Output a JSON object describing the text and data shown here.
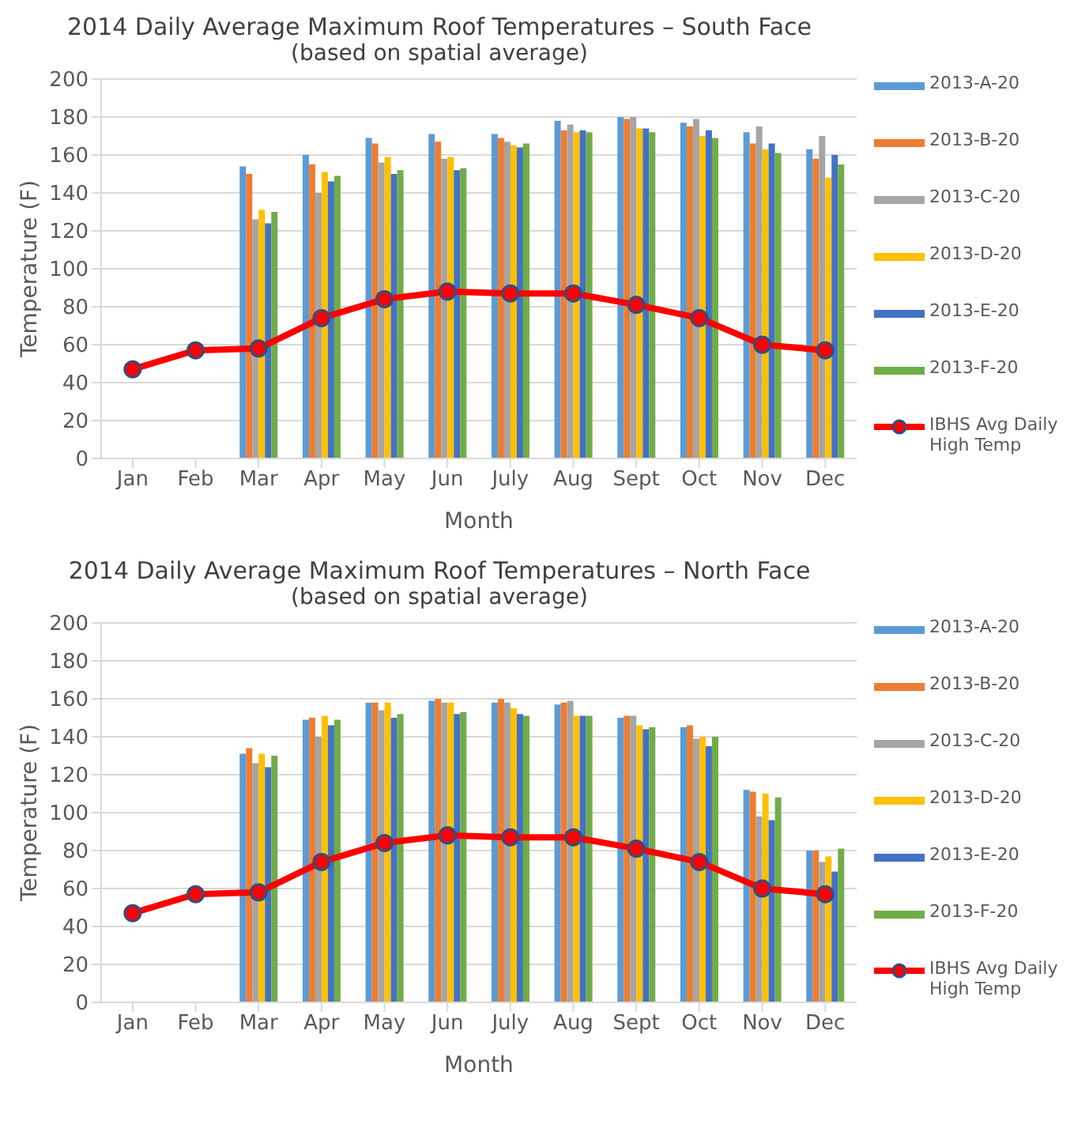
{
  "chart_data": [
    {
      "type": "bar",
      "title": "2014 Daily Average Maximum Roof Temperatures – South Face",
      "subtitle": "(based on spatial average)",
      "xlabel": "Month",
      "ylabel": "Temperature (F)",
      "categories": [
        "Jan",
        "Feb",
        "Mar",
        "Apr",
        "May",
        "Jun",
        "July",
        "Aug",
        "Sept",
        "Oct",
        "Nov",
        "Dec"
      ],
      "series": [
        {
          "name": "2013-A-20",
          "color": "#5b9bd5",
          "values": [
            null,
            null,
            154,
            160,
            169,
            171,
            171,
            178,
            180,
            177,
            172,
            163
          ]
        },
        {
          "name": "2013-B-20",
          "color": "#ed7d31",
          "values": [
            null,
            null,
            150,
            155,
            166,
            167,
            169,
            173,
            179,
            175,
            166,
            158
          ]
        },
        {
          "name": "2013-C-20",
          "color": "#a5a5a5",
          "values": [
            null,
            null,
            126,
            140,
            156,
            158,
            167,
            176,
            180,
            179,
            175,
            170
          ]
        },
        {
          "name": "2013-D-20",
          "color": "#ffc000",
          "values": [
            null,
            null,
            131,
            151,
            159,
            159,
            165,
            172,
            174,
            170,
            163,
            148
          ]
        },
        {
          "name": "2013-E-20",
          "color": "#4472c4",
          "values": [
            null,
            null,
            124,
            146,
            150,
            152,
            164,
            173,
            174,
            173,
            166,
            160
          ]
        },
        {
          "name": "2013-F-20",
          "color": "#70ad47",
          "values": [
            null,
            null,
            130,
            149,
            152,
            153,
            166,
            172,
            172,
            169,
            161,
            155
          ]
        },
        {
          "name": "IBHS Avg Daily High Temp",
          "type": "line",
          "color": "#ff0000",
          "values": [
            47,
            57,
            58,
            74,
            84,
            88,
            87,
            87,
            81,
            74,
            60,
            57
          ]
        }
      ],
      "ylim": [
        0,
        200
      ],
      "yticks": [
        0,
        20,
        40,
        60,
        80,
        100,
        120,
        140,
        160,
        180,
        200
      ],
      "grid": "y",
      "legend": "right",
      "marker": "circle"
    },
    {
      "type": "bar",
      "title": "2014 Daily Average Maximum Roof Temperatures – North Face",
      "subtitle": "(based on spatial average)",
      "xlabel": "Month",
      "ylabel": "Temperature (F)",
      "categories": [
        "Jan",
        "Feb",
        "Mar",
        "Apr",
        "May",
        "Jun",
        "July",
        "Aug",
        "Sept",
        "Oct",
        "Nov",
        "Dec"
      ],
      "series": [
        {
          "name": "2013-A-20",
          "color": "#5b9bd5",
          "values": [
            null,
            null,
            131,
            149,
            158,
            159,
            158,
            157,
            150,
            145,
            112,
            80
          ]
        },
        {
          "name": "2013-B-20",
          "color": "#ed7d31",
          "values": [
            null,
            null,
            134,
            150,
            158,
            160,
            160,
            158,
            151,
            146,
            111,
            80
          ]
        },
        {
          "name": "2013-C-20",
          "color": "#a5a5a5",
          "values": [
            null,
            null,
            126,
            140,
            154,
            158,
            158,
            159,
            151,
            139,
            98,
            74
          ]
        },
        {
          "name": "2013-D-20",
          "color": "#ffc000",
          "values": [
            null,
            null,
            131,
            151,
            158,
            158,
            155,
            151,
            146,
            140,
            110,
            77
          ]
        },
        {
          "name": "2013-E-20",
          "color": "#4472c4",
          "values": [
            null,
            null,
            124,
            146,
            150,
            152,
            152,
            151,
            144,
            135,
            96,
            69
          ]
        },
        {
          "name": "2013-F-20",
          "color": "#70ad47",
          "values": [
            null,
            null,
            130,
            149,
            152,
            153,
            151,
            151,
            145,
            140,
            108,
            81
          ]
        },
        {
          "name": "IBHS Avg Daily High Temp",
          "type": "line",
          "color": "#ff0000",
          "values": [
            47,
            57,
            58,
            74,
            84,
            88,
            87,
            87,
            81,
            74,
            60,
            57
          ]
        }
      ],
      "ylim": [
        0,
        200
      ],
      "yticks": [
        0,
        20,
        40,
        60,
        80,
        100,
        120,
        140,
        160,
        180,
        200
      ],
      "grid": "y",
      "legend": "right",
      "marker": "circle"
    }
  ]
}
